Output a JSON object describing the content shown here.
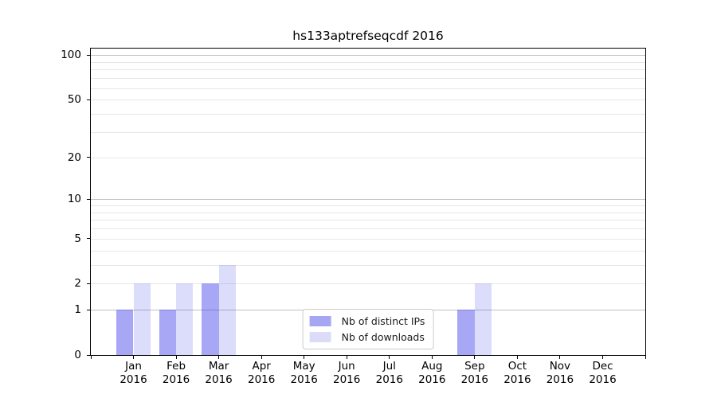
{
  "chart_data": {
    "type": "bar",
    "title": "hs133aptrefseqcdf 2016",
    "categories": [
      "Jan",
      "Feb",
      "Mar",
      "Apr",
      "May",
      "Jun",
      "Jul",
      "Aug",
      "Sep",
      "Oct",
      "Nov",
      "Dec"
    ],
    "x_year_label": "2016",
    "series": [
      {
        "name": "Nb of distinct IPs",
        "values": [
          1,
          1,
          2,
          0,
          0,
          0,
          0,
          0,
          1,
          0,
          0,
          0
        ],
        "fill": "rgba(60,60,235,0.45)",
        "swatch": "#a6a6f2"
      },
      {
        "name": "Nb of downloads",
        "values": [
          2,
          2,
          3,
          0,
          0,
          0,
          0,
          0,
          2,
          0,
          0,
          0
        ],
        "fill": "rgba(60,60,235,0.18)",
        "swatch": "#dcdcf9"
      }
    ],
    "yscale": "log1p",
    "ylim": [
      0,
      111
    ],
    "y_ticks": [
      0,
      1,
      2,
      5,
      10,
      20,
      50,
      100
    ],
    "y_major_gridlines": [
      1,
      10,
      100
    ],
    "y_minor_gridlines": [
      2,
      3,
      4,
      5,
      6,
      7,
      8,
      9,
      20,
      30,
      40,
      50,
      60,
      70,
      80,
      90
    ],
    "xlabel": "",
    "ylabel": "",
    "grid": true,
    "legend_position": "lower center",
    "bar_width_fraction": 0.4
  },
  "colors": {
    "major_grid": "#c0c0c0",
    "minor_grid": "#e7e7e7",
    "spine": "#000000",
    "legend_border": "#cccccc",
    "text": "#000000"
  }
}
